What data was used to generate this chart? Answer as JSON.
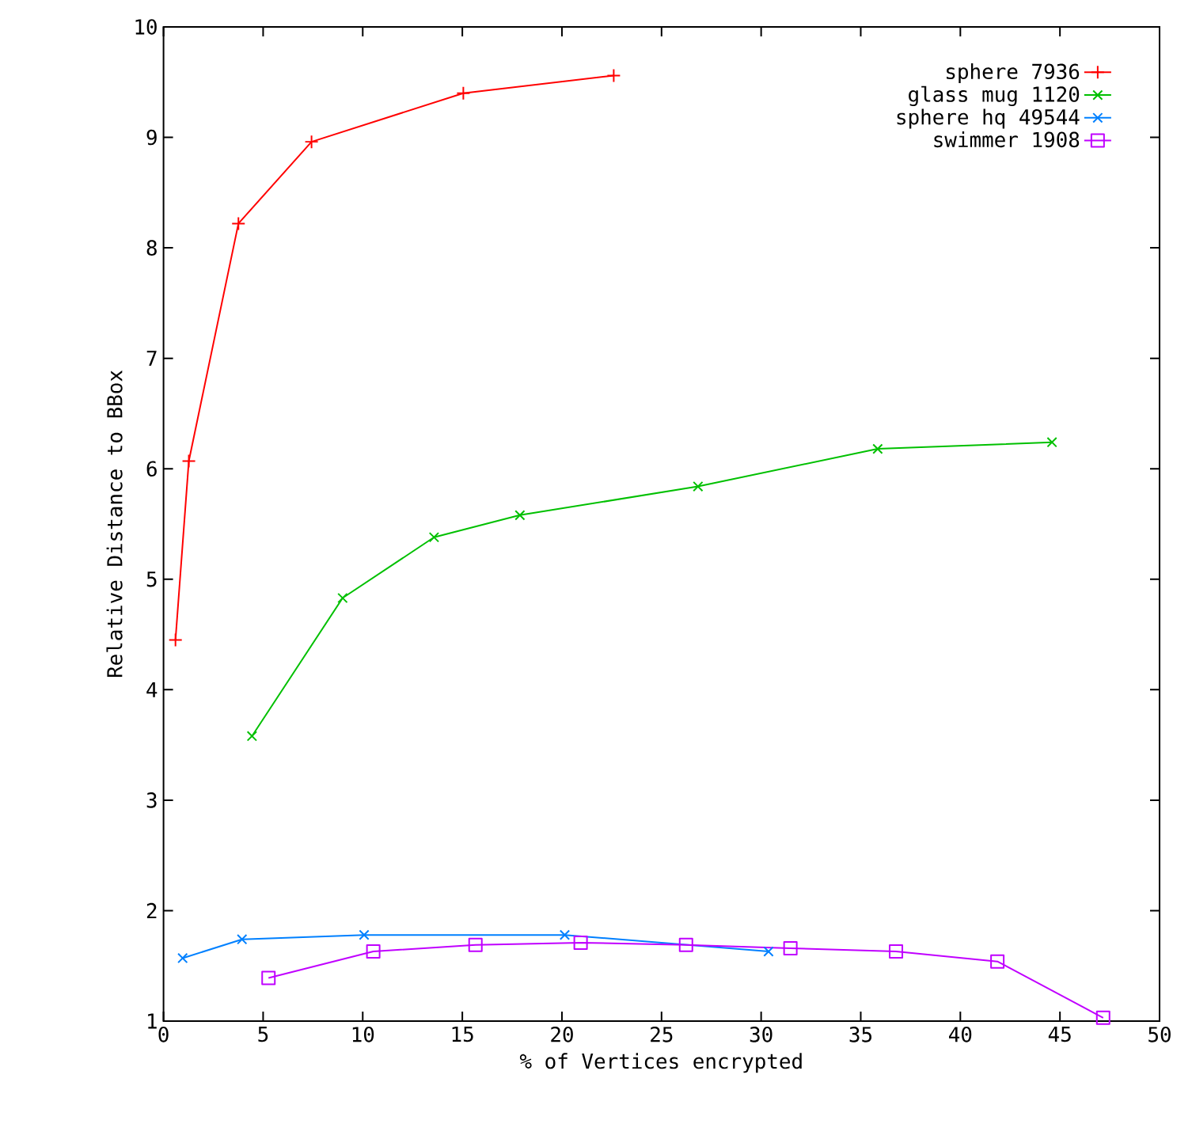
{
  "chart_data": {
    "type": "line",
    "xlabel": "% of Vertices encrypted",
    "ylabel": "Relative Distance to BBox",
    "xlim": [
      0,
      50
    ],
    "ylim": [
      1,
      10
    ],
    "xticks": [
      0,
      5,
      10,
      15,
      20,
      25,
      30,
      35,
      40,
      45,
      50
    ],
    "yticks": [
      1,
      2,
      3,
      4,
      5,
      6,
      7,
      8,
      9,
      10
    ],
    "grid": false,
    "legend": "top right",
    "line_style": "solid",
    "series": [
      {
        "name": "sphere 7936",
        "color": "#ff0000",
        "marker": "plus",
        "x": [
          0.6,
          1.27,
          3.76,
          7.43,
          15.05,
          22.6
        ],
        "values": [
          4.45,
          6.07,
          8.22,
          8.96,
          9.4,
          9.56
        ]
      },
      {
        "name": "glass mug 1120",
        "color": "#00c000",
        "marker": "cross",
        "x": [
          4.44,
          8.99,
          13.58,
          17.89,
          26.83,
          35.85,
          44.6
        ],
        "values": [
          3.58,
          4.83,
          5.38,
          5.58,
          5.84,
          6.18,
          6.24
        ]
      },
      {
        "name": "sphere hq 49544",
        "color": "#0080ff",
        "marker": "cross",
        "x": [
          0.96,
          3.94,
          10.07,
          20.14,
          30.37
        ],
        "values": [
          1.57,
          1.74,
          1.78,
          1.78,
          1.63
        ]
      },
      {
        "name": "swimmer 1908",
        "color": "#c000ff",
        "marker": "square",
        "x": [
          5.27,
          10.53,
          15.66,
          20.94,
          26.23,
          31.47,
          36.77,
          41.86,
          47.17
        ],
        "values": [
          1.39,
          1.63,
          1.69,
          1.71,
          1.69,
          1.66,
          1.63,
          1.54,
          1.03
        ]
      }
    ]
  }
}
